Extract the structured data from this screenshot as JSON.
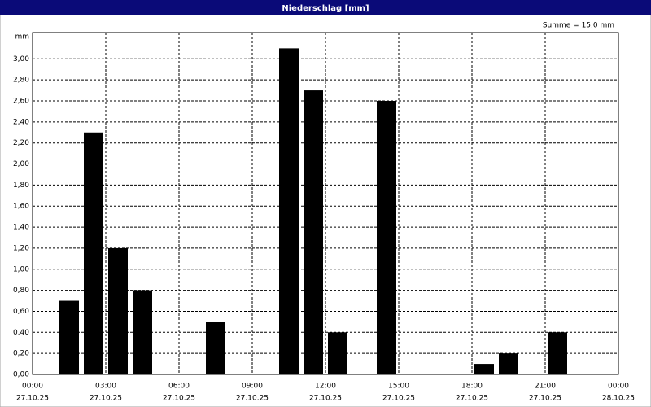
{
  "chart_data": {
    "type": "bar",
    "title": "Niederschlag [mm]",
    "y_unit": "mm",
    "annotation": "Summe = 15,0 mm",
    "x": [
      1,
      2,
      3,
      4,
      7,
      10,
      11,
      12,
      14,
      18,
      19,
      21
    ],
    "values": [
      0.7,
      2.3,
      1.2,
      0.8,
      0.5,
      3.1,
      2.7,
      0.4,
      2.6,
      0.1,
      0.2,
      0.4
    ],
    "bar_width": 1,
    "color": "#000000",
    "xlim": [
      0,
      24
    ],
    "xticks": [
      {
        "value": 0,
        "label": "00:00",
        "date": "27.10.25"
      },
      {
        "value": 3,
        "label": "03:00",
        "date": "27.10.25"
      },
      {
        "value": 6,
        "label": "06:00",
        "date": "27.10.25"
      },
      {
        "value": 9,
        "label": "09:00",
        "date": "27.10.25"
      },
      {
        "value": 12,
        "label": "12:00",
        "date": "27.10.25"
      },
      {
        "value": 15,
        "label": "15:00",
        "date": "27.10.25"
      },
      {
        "value": 18,
        "label": "18:00",
        "date": "27.10.25"
      },
      {
        "value": 21,
        "label": "21:00",
        "date": "27.10.25"
      },
      {
        "value": 24,
        "label": "00:00",
        "date": "28.10.25"
      }
    ],
    "ylim": [
      0,
      3.25
    ],
    "yticks": [
      {
        "value": 0,
        "label": "0,00"
      },
      {
        "value": 0.2,
        "label": "0,20"
      },
      {
        "value": 0.4,
        "label": "0,40"
      },
      {
        "value": 0.6,
        "label": "0,60"
      },
      {
        "value": 0.8,
        "label": "0,80"
      },
      {
        "value": 1.0,
        "label": "1,00"
      },
      {
        "value": 1.2,
        "label": "1,20"
      },
      {
        "value": 1.4,
        "label": "1,40"
      },
      {
        "value": 1.6,
        "label": "1,60"
      },
      {
        "value": 1.8,
        "label": "1,80"
      },
      {
        "value": 2.0,
        "label": "2,00"
      },
      {
        "value": 2.2,
        "label": "2,20"
      },
      {
        "value": 2.4,
        "label": "2,40"
      },
      {
        "value": 2.6,
        "label": "2,60"
      },
      {
        "value": 2.8,
        "label": "2,80"
      },
      {
        "value": 3.0,
        "label": "3,00"
      }
    ],
    "grid": true
  }
}
